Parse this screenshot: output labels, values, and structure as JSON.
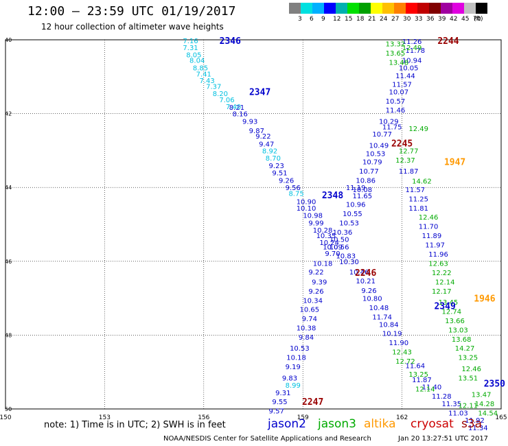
{
  "header": {
    "title": "12:00 – 23:59 UTC 01/19/2017",
    "subtitle": "12 hour collection of altimeter wave heights"
  },
  "colorbar": {
    "unit": "(ft)",
    "colors": [
      "#808080",
      "#00e0e0",
      "#00b0ff",
      "#0000ff",
      "#00b0b0",
      "#00e000",
      "#00a000",
      "#ffff00",
      "#ffc000",
      "#ff8000",
      "#ff0000",
      "#c00000",
      "#800000",
      "#a000a0",
      "#e000e0",
      "#c0c0c0",
      "#000000"
    ],
    "labels": [
      "3",
      "6",
      "9",
      "12",
      "15",
      "18",
      "21",
      "24",
      "27",
      "30",
      "33",
      "36",
      "39",
      "42",
      "45",
      "70"
    ]
  },
  "map": {
    "lon_labels": [
      "150",
      "153",
      "156",
      "159",
      "162",
      "165"
    ],
    "lat_labels": [
      "40",
      "42",
      "44",
      "46",
      "48",
      "50"
    ]
  },
  "footer": {
    "note": "note: 1) Time is in UTC; 2) SWH is in feet",
    "credit": "NOAA/NESDIS Center for Satellite Applications and Research",
    "generated": "Jan 20 13:27:51 UTC 2017",
    "legend": [
      {
        "name": "jason2",
        "color": "#0000cc"
      },
      {
        "name": "jason3",
        "color": "#00aa00"
      },
      {
        "name": "altika",
        "color": "#ff9900"
      },
      {
        "name": "cryosat",
        "color": "#cc0000"
      },
      {
        "name": "s3a",
        "color": "#990000"
      }
    ]
  },
  "chart_data": {
    "type": "scatter",
    "x_range": [
      150,
      165
    ],
    "y_range": [
      40,
      50
    ],
    "pass_times": [
      {
        "label": "2346",
        "color": "#0000cc",
        "lon": 156.8,
        "lat": 40.02
      },
      {
        "label": "2347",
        "color": "#0000cc",
        "lon": 157.7,
        "lat": 41.4
      },
      {
        "label": "2348",
        "color": "#0000cc",
        "lon": 159.9,
        "lat": 44.2
      },
      {
        "label": "2349",
        "color": "#0000cc",
        "lon": 163.3,
        "lat": 47.2
      },
      {
        "label": "2350",
        "color": "#0000cc",
        "lon": 164.8,
        "lat": 49.3
      },
      {
        "label": "2244",
        "color": "#990000",
        "lon": 163.4,
        "lat": 40.02
      },
      {
        "label": "2245",
        "color": "#990000",
        "lon": 162.0,
        "lat": 42.8
      },
      {
        "label": "2246",
        "color": "#990000",
        "lon": 160.9,
        "lat": 46.3
      },
      {
        "label": "2247",
        "color": "#990000",
        "lon": 159.3,
        "lat": 49.8
      },
      {
        "label": "1947",
        "color": "#ff9900",
        "lon": 163.6,
        "lat": 43.3
      },
      {
        "label": "1946",
        "color": "#ff9900",
        "lon": 164.5,
        "lat": 47.0
      }
    ],
    "series": [
      {
        "name": "jason2",
        "color": "#0000cc",
        "points": [
          {
            "lon": 157.0,
            "lat": 41.82,
            "v": "8.21"
          },
          {
            "lon": 157.1,
            "lat": 42.0,
            "v": "8.16"
          },
          {
            "lon": 157.4,
            "lat": 42.2,
            "v": "9.93"
          },
          {
            "lon": 157.6,
            "lat": 42.45,
            "v": "9.87"
          },
          {
            "lon": 157.8,
            "lat": 42.6,
            "v": "9.22"
          },
          {
            "lon": 157.9,
            "lat": 42.82,
            "v": "9.47"
          },
          {
            "lon": 158.2,
            "lat": 43.4,
            "v": "9.23"
          },
          {
            "lon": 158.3,
            "lat": 43.6,
            "v": "9.51"
          },
          {
            "lon": 158.5,
            "lat": 43.8,
            "v": "9.26"
          },
          {
            "lon": 158.7,
            "lat": 44.0,
            "v": "9.56"
          },
          {
            "lon": 159.1,
            "lat": 44.38,
            "v": "10.90"
          },
          {
            "lon": 159.1,
            "lat": 44.55,
            "v": "10.10"
          },
          {
            "lon": 159.3,
            "lat": 44.75,
            "v": "10.98"
          },
          {
            "lon": 159.4,
            "lat": 44.95,
            "v": "9.99"
          },
          {
            "lon": 159.6,
            "lat": 45.15,
            "v": "10.28"
          },
          {
            "lon": 159.7,
            "lat": 45.3,
            "v": "10.35"
          },
          {
            "lon": 159.8,
            "lat": 45.48,
            "v": "10.24"
          },
          {
            "lon": 159.9,
            "lat": 45.6,
            "v": "10.09"
          },
          {
            "lon": 159.9,
            "lat": 45.78,
            "v": "9.70"
          },
          {
            "lon": 159.6,
            "lat": 46.05,
            "v": "10.18"
          },
          {
            "lon": 159.4,
            "lat": 46.28,
            "v": "9.22"
          },
          {
            "lon": 159.5,
            "lat": 46.55,
            "v": "9.39"
          },
          {
            "lon": 159.4,
            "lat": 46.8,
            "v": "9.26"
          },
          {
            "lon": 159.3,
            "lat": 47.05,
            "v": "10.34"
          },
          {
            "lon": 159.2,
            "lat": 47.3,
            "v": "10.65"
          },
          {
            "lon": 159.2,
            "lat": 47.55,
            "v": "9.74"
          },
          {
            "lon": 159.1,
            "lat": 47.8,
            "v": "10.38"
          },
          {
            "lon": 159.1,
            "lat": 48.05,
            "v": "9.84"
          },
          {
            "lon": 158.9,
            "lat": 48.35,
            "v": "10.53"
          },
          {
            "lon": 158.8,
            "lat": 48.6,
            "v": "10.18"
          },
          {
            "lon": 158.7,
            "lat": 48.85,
            "v": "9.19"
          },
          {
            "lon": 158.6,
            "lat": 49.15,
            "v": "9.83"
          },
          {
            "lon": 158.4,
            "lat": 49.55,
            "v": "9.31"
          },
          {
            "lon": 158.3,
            "lat": 49.8,
            "v": "9.55"
          },
          {
            "lon": 158.2,
            "lat": 50.05,
            "v": "9.57"
          },
          {
            "lon": 160.6,
            "lat": 44.0,
            "v": "11.19"
          },
          {
            "lon": 160.8,
            "lat": 44.22,
            "v": "11.65"
          },
          {
            "lon": 160.6,
            "lat": 44.45,
            "v": "10.96"
          },
          {
            "lon": 160.5,
            "lat": 44.7,
            "v": "10.55"
          },
          {
            "lon": 160.4,
            "lat": 44.95,
            "v": "10.53"
          },
          {
            "lon": 160.2,
            "lat": 45.2,
            "v": "10.36"
          },
          {
            "lon": 160.1,
            "lat": 45.4,
            "v": "10.50"
          },
          {
            "lon": 160.1,
            "lat": 45.6,
            "v": "10.56"
          },
          {
            "lon": 160.3,
            "lat": 45.85,
            "v": "10.83"
          },
          {
            "lon": 160.4,
            "lat": 46.0,
            "v": "10.30"
          },
          {
            "lon": 160.7,
            "lat": 46.28,
            "v": "10.46"
          },
          {
            "lon": 160.9,
            "lat": 46.52,
            "v": "10.21"
          },
          {
            "lon": 161.0,
            "lat": 46.78,
            "v": "9.26"
          },
          {
            "lon": 161.1,
            "lat": 47.0,
            "v": "10.80"
          },
          {
            "lon": 161.3,
            "lat": 47.25,
            "v": "10.48"
          },
          {
            "lon": 161.4,
            "lat": 47.5,
            "v": "11.74"
          },
          {
            "lon": 161.6,
            "lat": 47.7,
            "v": "10.84"
          },
          {
            "lon": 161.7,
            "lat": 47.95,
            "v": "10.19"
          },
          {
            "lon": 161.9,
            "lat": 48.2,
            "v": "11.90"
          },
          {
            "lon": 162.4,
            "lat": 48.82,
            "v": "11.64"
          },
          {
            "lon": 162.6,
            "lat": 49.2,
            "v": "11.87"
          },
          {
            "lon": 162.9,
            "lat": 49.4,
            "v": "11.40"
          },
          {
            "lon": 163.2,
            "lat": 49.65,
            "v": "11.28"
          },
          {
            "lon": 163.5,
            "lat": 49.85,
            "v": "11.35"
          },
          {
            "lon": 163.7,
            "lat": 50.1,
            "v": "11.03"
          },
          {
            "lon": 164.2,
            "lat": 50.3,
            "v": "11.92"
          },
          {
            "lon": 164.3,
            "lat": 50.5,
            "v": "11.34"
          },
          {
            "lon": 162.3,
            "lat": 40.04,
            "v": "11.26"
          },
          {
            "lon": 162.4,
            "lat": 40.28,
            "v": "11.78"
          },
          {
            "lon": 162.3,
            "lat": 40.55,
            "v": "10.94"
          },
          {
            "lon": 162.2,
            "lat": 40.75,
            "v": "10.05"
          },
          {
            "lon": 162.1,
            "lat": 40.97,
            "v": "11.44"
          },
          {
            "lon": 162.0,
            "lat": 41.2,
            "v": "11.57"
          },
          {
            "lon": 161.9,
            "lat": 41.4,
            "v": "10.07"
          },
          {
            "lon": 161.8,
            "lat": 41.65,
            "v": "10.57"
          },
          {
            "lon": 161.8,
            "lat": 41.9,
            "v": "11.46"
          },
          {
            "lon": 161.6,
            "lat": 42.2,
            "v": "10.29"
          },
          {
            "lon": 161.7,
            "lat": 42.35,
            "v": "11.75"
          },
          {
            "lon": 161.4,
            "lat": 42.55,
            "v": "10.77"
          },
          {
            "lon": 161.3,
            "lat": 42.85,
            "v": "10.49"
          },
          {
            "lon": 161.2,
            "lat": 43.08,
            "v": "10.53"
          },
          {
            "lon": 161.1,
            "lat": 43.3,
            "v": "10.79"
          },
          {
            "lon": 161.0,
            "lat": 43.55,
            "v": "10.77"
          },
          {
            "lon": 160.9,
            "lat": 43.8,
            "v": "10.86"
          },
          {
            "lon": 160.8,
            "lat": 44.05,
            "v": "10.08"
          },
          {
            "lon": 162.2,
            "lat": 43.55,
            "v": "11.87"
          },
          {
            "lon": 162.4,
            "lat": 44.05,
            "v": "11.57"
          },
          {
            "lon": 162.5,
            "lat": 44.3,
            "v": "11.25"
          },
          {
            "lon": 162.5,
            "lat": 44.55,
            "v": "11.81"
          },
          {
            "lon": 162.8,
            "lat": 45.05,
            "v": "11.70"
          },
          {
            "lon": 162.9,
            "lat": 45.3,
            "v": "11.89"
          },
          {
            "lon": 163.0,
            "lat": 45.55,
            "v": "11.97"
          },
          {
            "lon": 163.1,
            "lat": 45.8,
            "v": "11.96"
          }
        ]
      },
      {
        "name": "jason3",
        "color": "#00aa00",
        "points": [
          {
            "lon": 161.8,
            "lat": 40.1,
            "v": "13.32"
          },
          {
            "lon": 161.8,
            "lat": 40.35,
            "v": "13.65"
          },
          {
            "lon": 162.3,
            "lat": 40.2,
            "v": "12.49"
          },
          {
            "lon": 161.9,
            "lat": 40.6,
            "v": "13.48"
          },
          {
            "lon": 162.5,
            "lat": 42.4,
            "v": "12.49"
          },
          {
            "lon": 162.2,
            "lat": 43.0,
            "v": "12.77"
          },
          {
            "lon": 162.1,
            "lat": 43.25,
            "v": "12.37"
          },
          {
            "lon": 162.6,
            "lat": 43.82,
            "v": "14.62"
          },
          {
            "lon": 162.8,
            "lat": 44.8,
            "v": "12.46"
          },
          {
            "lon": 163.1,
            "lat": 46.05,
            "v": "12.63"
          },
          {
            "lon": 163.2,
            "lat": 46.3,
            "v": "12.22"
          },
          {
            "lon": 163.3,
            "lat": 46.55,
            "v": "12.14"
          },
          {
            "lon": 163.2,
            "lat": 46.8,
            "v": "12.17"
          },
          {
            "lon": 163.4,
            "lat": 47.1,
            "v": "13.45"
          },
          {
            "lon": 163.5,
            "lat": 47.35,
            "v": "12.74"
          },
          {
            "lon": 163.6,
            "lat": 47.6,
            "v": "13.66"
          },
          {
            "lon": 163.7,
            "lat": 47.85,
            "v": "13.03"
          },
          {
            "lon": 163.8,
            "lat": 48.1,
            "v": "13.68"
          },
          {
            "lon": 163.9,
            "lat": 48.35,
            "v": "14.27"
          },
          {
            "lon": 164.0,
            "lat": 48.6,
            "v": "13.25"
          },
          {
            "lon": 164.1,
            "lat": 48.9,
            "v": "12.46"
          },
          {
            "lon": 164.0,
            "lat": 49.15,
            "v": "13.51"
          },
          {
            "lon": 162.0,
            "lat": 48.45,
            "v": "12.43"
          },
          {
            "lon": 162.1,
            "lat": 48.7,
            "v": "12.72"
          },
          {
            "lon": 162.5,
            "lat": 49.05,
            "v": "13.25"
          },
          {
            "lon": 162.7,
            "lat": 49.45,
            "v": "12.14"
          },
          {
            "lon": 164.4,
            "lat": 49.6,
            "v": "13.47"
          },
          {
            "lon": 164.5,
            "lat": 49.85,
            "v": "14.28"
          },
          {
            "lon": 164.0,
            "lat": 49.9,
            "v": "12.11"
          },
          {
            "lon": 164.6,
            "lat": 50.1,
            "v": "14.54"
          }
        ]
      },
      {
        "name": "cyan",
        "color": "#00c0e0",
        "points": [
          {
            "lon": 155.6,
            "lat": 40.02,
            "v": "7.16"
          },
          {
            "lon": 155.6,
            "lat": 40.2,
            "v": "7.31"
          },
          {
            "lon": 155.7,
            "lat": 40.4,
            "v": "8.05"
          },
          {
            "lon": 155.8,
            "lat": 40.55,
            "v": "8.04"
          },
          {
            "lon": 155.9,
            "lat": 40.75,
            "v": "8.85"
          },
          {
            "lon": 156.0,
            "lat": 40.92,
            "v": "7.41"
          },
          {
            "lon": 156.1,
            "lat": 41.1,
            "v": "7.43"
          },
          {
            "lon": 156.3,
            "lat": 41.25,
            "v": "7.37"
          },
          {
            "lon": 156.5,
            "lat": 41.45,
            "v": "8.20"
          },
          {
            "lon": 156.7,
            "lat": 41.62,
            "v": "7.06"
          },
          {
            "lon": 156.9,
            "lat": 41.8,
            "v": "7.40"
          },
          {
            "lon": 158.0,
            "lat": 43.0,
            "v": "8.92"
          },
          {
            "lon": 158.1,
            "lat": 43.2,
            "v": "8.70"
          },
          {
            "lon": 158.8,
            "lat": 44.15,
            "v": "8.75"
          },
          {
            "lon": 158.7,
            "lat": 49.35,
            "v": "8.99"
          }
        ]
      }
    ]
  }
}
